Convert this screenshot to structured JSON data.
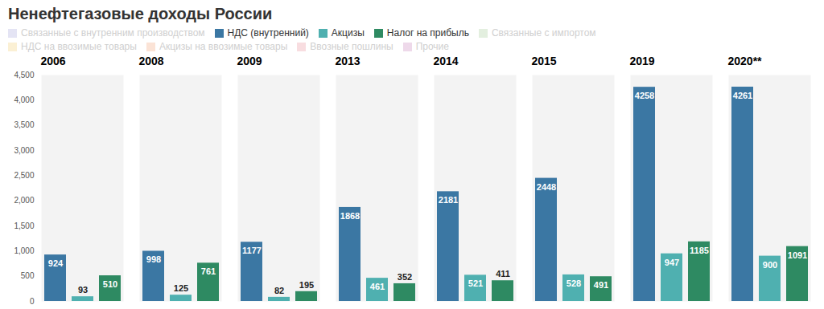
{
  "chart_data": {
    "type": "bar",
    "title": "Ненефтегазовые доходы России",
    "categories": [
      "2006",
      "2008",
      "2009",
      "2013",
      "2014",
      "2015",
      "2019",
      "2020**"
    ],
    "series": [
      {
        "name": "Связанные с внутренним производством",
        "color": "#e4e4f4",
        "values": [
          null,
          null,
          null,
          null,
          null,
          null,
          null,
          null
        ]
      },
      {
        "name": "НДС (внутренний)",
        "color": "#3b77a3",
        "values": [
          924,
          998,
          1177,
          1868,
          2181,
          2448,
          4258,
          4261
        ]
      },
      {
        "name": "Акцизы",
        "color": "#4fb0b0",
        "values": [
          93,
          125,
          82,
          461,
          521,
          528,
          947,
          900
        ]
      },
      {
        "name": "Налог на прибыль",
        "color": "#2e8a62",
        "values": [
          510,
          761,
          195,
          352,
          411,
          491,
          1185,
          1091
        ]
      },
      {
        "name": "Связанные с импортом",
        "color": "#e3efdf",
        "values": [
          null,
          null,
          null,
          null,
          null,
          null,
          null,
          null
        ]
      },
      {
        "name": "НДС на ввозимые товары",
        "color": "#fbf0d4",
        "values": [
          null,
          null,
          null,
          null,
          null,
          null,
          null,
          null
        ]
      },
      {
        "name": "Акцизы на ввозимые товары",
        "color": "#fbe3d6",
        "values": [
          null,
          null,
          null,
          null,
          null,
          null,
          null,
          null
        ]
      },
      {
        "name": "Ввозные пошлины",
        "color": "#f8dde0",
        "values": [
          null,
          null,
          null,
          null,
          null,
          null,
          null,
          null
        ]
      },
      {
        "name": "Прочие",
        "color": "#eed9ea",
        "values": [
          null,
          null,
          null,
          null,
          null,
          null,
          null,
          null
        ]
      }
    ],
    "ylim": [
      0,
      4500
    ],
    "yticks": [
      0,
      500,
      1000,
      1500,
      2000,
      2500,
      3000,
      3500,
      4000,
      4500
    ],
    "grid": false,
    "legend": "top-left",
    "data_labels": true,
    "tick_labels": "y"
  }
}
